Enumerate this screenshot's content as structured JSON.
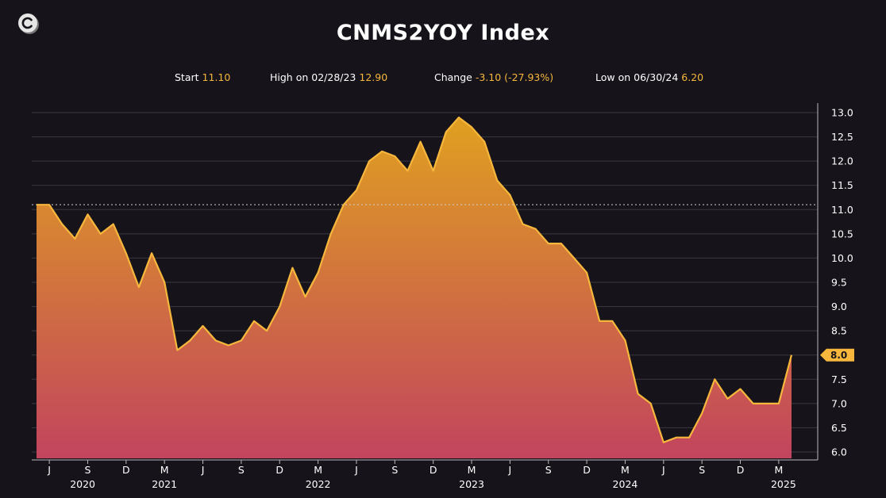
{
  "header": {
    "logo_icon": "c-coin-logo-icon",
    "title": "CNMS2YOY Index"
  },
  "stats": {
    "start_label": "Start",
    "start_value": "11.10",
    "high_label": "High on 02/28/23",
    "high_value": "12.90",
    "change_label": "Change",
    "change_value": "-3.10  (-27.93%)",
    "low_label": "Low on 06/30/24",
    "low_value": "6.20"
  },
  "colors": {
    "background": "#16141a",
    "line": "#f6b73c",
    "fill_top": "#e0a020",
    "fill_bottom": "#c2445e",
    "accent": "#f6b73c"
  },
  "chart_data": {
    "type": "area",
    "title": "CNMS2YOY Index",
    "ylim": [
      6.0,
      13.0
    ],
    "yticks": [
      "13.0",
      "12.5",
      "12.0",
      "11.5",
      "11.0",
      "10.5",
      "10.0",
      "9.5",
      "9.0",
      "8.5",
      "8.0",
      "7.5",
      "7.0",
      "6.5",
      "6.0"
    ],
    "grid": true,
    "reference_line": {
      "value": 11.1,
      "style": "dotted"
    },
    "last_value_label": "8.0",
    "x_month_labels": [
      "J",
      "S",
      "D",
      "M",
      "J",
      "S",
      "D",
      "M",
      "J",
      "S",
      "D",
      "M",
      "J",
      "S",
      "D",
      "M",
      "J",
      "S",
      "D",
      "M"
    ],
    "x_year_labels": [
      "2020",
      "2021",
      "2022",
      "2023",
      "2024",
      "2025"
    ],
    "series": [
      {
        "values": [
          11.1,
          11.1,
          10.7,
          10.4,
          10.9,
          10.5,
          10.7,
          10.1,
          9.4,
          10.1,
          9.5,
          8.1,
          8.3,
          8.6,
          8.3,
          8.2,
          8.3,
          8.7,
          8.5,
          9.0,
          9.8,
          9.2,
          9.7,
          10.5,
          11.1,
          11.4,
          12.0,
          12.2,
          12.1,
          11.8,
          12.4,
          11.8,
          12.6,
          12.9,
          12.7,
          12.4,
          11.6,
          11.3,
          10.7,
          10.6,
          10.3,
          10.3,
          10.0,
          9.7,
          8.7,
          8.7,
          8.3,
          7.2,
          7.0,
          6.2,
          6.3,
          6.3,
          6.8,
          7.5,
          7.1,
          7.3,
          7.0,
          7.0,
          7.0,
          8.0
        ]
      }
    ]
  }
}
